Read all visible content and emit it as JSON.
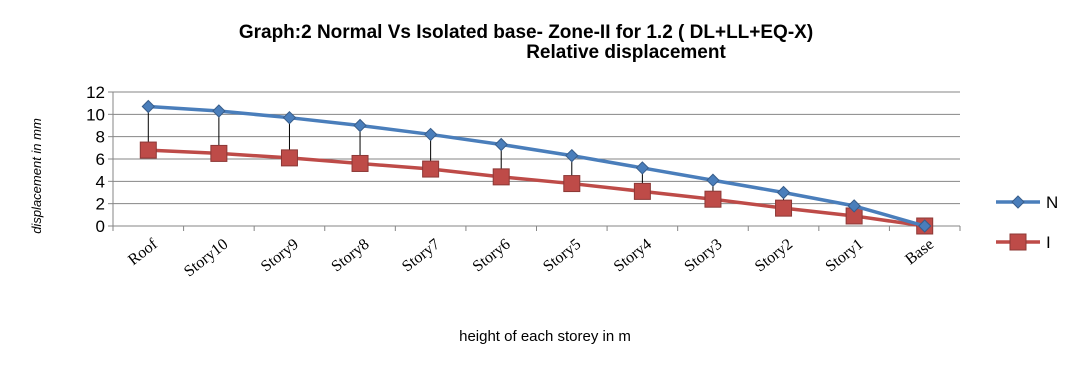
{
  "chart_data": {
    "type": "line",
    "title_line1": "Graph:2 Normal Vs Isolated base- Zone-II for 1.2 ( DL+LL+EQ-X)",
    "title_line2": "Relative displacement",
    "xlabel": "height of each storey in m",
    "ylabel": "displacement in mm",
    "categories": [
      "Roof",
      "Story10",
      "Story9",
      "Story8",
      "Story7",
      "Story6",
      "Story5",
      "Story4",
      "Story3",
      "Story2",
      "Story1",
      "Base"
    ],
    "ylim": [
      0,
      12
    ],
    "yticks": [
      "0",
      "2",
      "4",
      "6",
      "8",
      "10",
      "12"
    ],
    "grid": "horizontal",
    "legend_position": "right",
    "series": [
      {
        "name": "N",
        "color": "#4a7ebb",
        "marker": "diamond",
        "values": [
          10.7,
          10.3,
          9.7,
          9.0,
          8.2,
          7.3,
          6.3,
          5.2,
          4.1,
          3.0,
          1.8,
          0
        ]
      },
      {
        "name": "I",
        "color": "#be4b48",
        "marker": "square",
        "values": [
          6.8,
          6.5,
          6.1,
          5.6,
          5.1,
          4.4,
          3.8,
          3.1,
          2.4,
          1.6,
          0.9,
          0
        ]
      }
    ],
    "drop_lines": true
  }
}
